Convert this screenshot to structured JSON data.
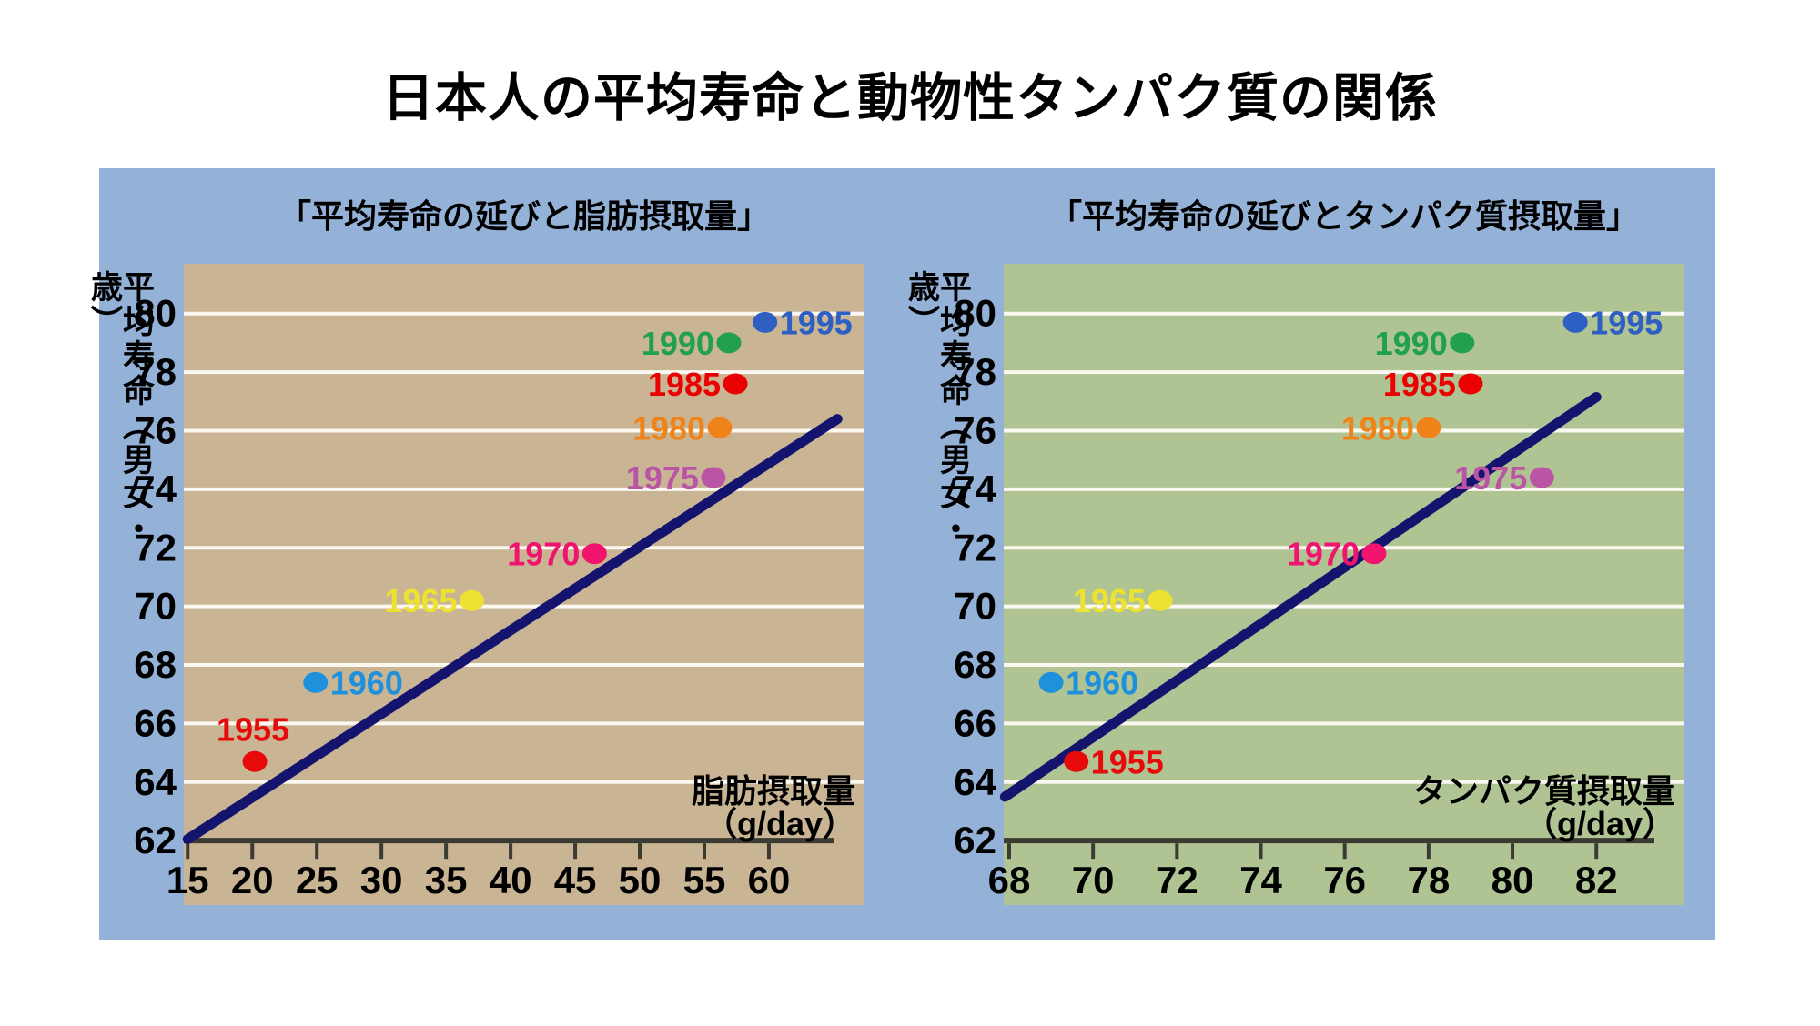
{
  "title": "日本人の平均寿命と動物性タンパク質の関係",
  "colors": {
    "page_bg": "#ffffff",
    "panel_bg": "#94B1D8",
    "trend_line": "#14146E",
    "grid_line": "#FBF8F1",
    "axis_line": "#3B3B33",
    "text": "#000000"
  },
  "y_axis": {
    "title": "平均寿命（男女・歳）",
    "ticks": [
      80,
      78,
      76,
      74,
      72,
      70,
      68,
      66,
      64,
      62
    ]
  },
  "chart_data": [
    {
      "type": "scatter",
      "title": "「平均寿命の延びと脂肪摂取量」",
      "xlabel": "脂肪摂取量",
      "xunit": "（g/day）",
      "ylabel": "平均寿命（男女・歳）",
      "bg_color": "#C9B494",
      "x_ticks": [
        15,
        20,
        25,
        30,
        35,
        40,
        45,
        50,
        55,
        60
      ],
      "xlim": [
        14.7,
        67.4
      ],
      "ylim": [
        59.8,
        81.7
      ],
      "grid": true,
      "legend": "none",
      "trend": {
        "x1": 15.0,
        "y1": 62.05,
        "x2": 65.3,
        "y2": 76.4
      },
      "points": [
        {
          "year": "1955",
          "x": 20.2,
          "y": 64.7,
          "color": "#E60A0A",
          "label_side": "above"
        },
        {
          "year": "1960",
          "x": 24.9,
          "y": 67.4,
          "color": "#1E90DC",
          "label_side": "right"
        },
        {
          "year": "1965",
          "x": 37.0,
          "y": 70.2,
          "color": "#EDE232",
          "label_side": "left"
        },
        {
          "year": "1970",
          "x": 46.5,
          "y": 71.8,
          "color": "#F0146E",
          "label_side": "left"
        },
        {
          "year": "1975",
          "x": 55.7,
          "y": 74.4,
          "color": "#BA55A6",
          "label_side": "left"
        },
        {
          "year": "1980",
          "x": 56.2,
          "y": 76.1,
          "color": "#F0821A",
          "label_side": "left"
        },
        {
          "year": "1985",
          "x": 57.4,
          "y": 77.6,
          "color": "#EA0000",
          "label_side": "left"
        },
        {
          "year": "1990",
          "x": 56.9,
          "y": 79.0,
          "color": "#21A04E",
          "label_side": "left"
        },
        {
          "year": "1995",
          "x": 59.7,
          "y": 79.7,
          "color": "#2E5FC3",
          "label_side": "right"
        }
      ]
    },
    {
      "type": "scatter",
      "title": "「平均寿命の延びとタンパク質摂取量」",
      "xlabel": "タンパク質摂取量",
      "xunit": "（g/day）",
      "ylabel": "平均寿命（男女・歳）",
      "bg_color": "#AFC492",
      "x_ticks": [
        68,
        70,
        72,
        74,
        76,
        78,
        80,
        82
      ],
      "xlim": [
        67.87,
        84.1
      ],
      "ylim": [
        59.8,
        81.7
      ],
      "grid": true,
      "legend": "none",
      "trend": {
        "x1": 67.9,
        "y1": 63.5,
        "x2": 82.0,
        "y2": 77.15
      },
      "points": [
        {
          "year": "1955",
          "x": 69.6,
          "y": 64.7,
          "color": "#E60A0A",
          "label_side": "right"
        },
        {
          "year": "1960",
          "x": 69.0,
          "y": 67.4,
          "color": "#1E90DC",
          "label_side": "right"
        },
        {
          "year": "1965",
          "x": 71.6,
          "y": 70.2,
          "color": "#EDE232",
          "label_side": "left"
        },
        {
          "year": "1970",
          "x": 76.7,
          "y": 71.8,
          "color": "#F0146E",
          "label_side": "left"
        },
        {
          "year": "1975",
          "x": 80.7,
          "y": 74.4,
          "color": "#BA55A6",
          "label_side": "left"
        },
        {
          "year": "1980",
          "x": 78.0,
          "y": 76.1,
          "color": "#F0821A",
          "label_side": "left"
        },
        {
          "year": "1985",
          "x": 79.0,
          "y": 77.6,
          "color": "#EA0000",
          "label_side": "left"
        },
        {
          "year": "1990",
          "x": 78.8,
          "y": 79.0,
          "color": "#21A04E",
          "label_side": "left"
        },
        {
          "year": "1995",
          "x": 81.5,
          "y": 79.7,
          "color": "#2E5FC3",
          "label_side": "right"
        }
      ]
    }
  ]
}
